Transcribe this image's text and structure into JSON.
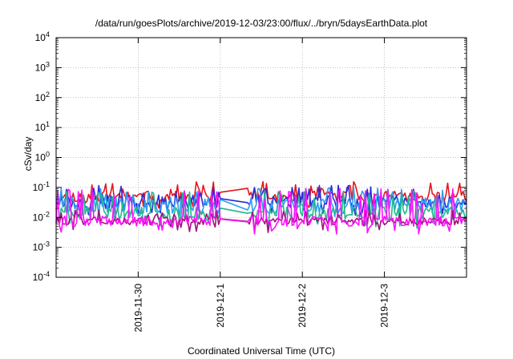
{
  "chart_data": {
    "type": "line",
    "title": "/data/run/goesPlots/archive/2019-12-03/23:00/flux/../bryn/5daysEarthData.plot",
    "xlabel": "Coordinated Universal Time (UTC)",
    "ylabel": "cSv/day",
    "y_scale": "log",
    "ylim": [
      0.0001,
      10000
    ],
    "y_ticks": [
      {
        "value": 0.0001,
        "base": "10",
        "exp": "-4"
      },
      {
        "value": 0.001,
        "base": "10",
        "exp": "-3"
      },
      {
        "value": 0.01,
        "base": "10",
        "exp": "-2"
      },
      {
        "value": 0.1,
        "base": "10",
        "exp": "-1"
      },
      {
        "value": 1,
        "base": "10",
        "exp": "0"
      },
      {
        "value": 10,
        "base": "10",
        "exp": "1"
      },
      {
        "value": 100,
        "base": "10",
        "exp": "2"
      },
      {
        "value": 1000,
        "base": "10",
        "exp": "3"
      },
      {
        "value": 10000,
        "base": "10",
        "exp": "4"
      }
    ],
    "x_type": "date",
    "xlim": [
      "2019-11-29T00:00",
      "2019-12-04T00:00"
    ],
    "x_ticks": [
      "2019-11-30",
      "2019-12-1",
      "2019-12-2",
      "2019-12-3"
    ],
    "x_tick_dates": [
      "2019-11-30T00:00",
      "2019-12-01T00:00",
      "2019-12-02T00:00",
      "2019-12-03T00:00"
    ],
    "grid": true,
    "gap": [
      "2019-12-01T00:00",
      "2019-12-01T08:00"
    ],
    "series": [
      {
        "color": "#e8141e",
        "base": 0.05,
        "spread": 0.35,
        "spikes": 0.12,
        "seed": 11
      },
      {
        "color": "#2a2ad8",
        "base": 0.035,
        "spread": 0.45,
        "spikes": 0.09,
        "seed": 23
      },
      {
        "color": "#2aa0ee",
        "base": 0.025,
        "spread": 0.55,
        "spikes": 0.08,
        "seed": 37
      },
      {
        "color": "#20b88c",
        "base": 0.013,
        "spread": 0.45,
        "spikes": 0.06,
        "seed": 41
      },
      {
        "color": "#a0147a",
        "base": 0.0075,
        "spread": 0.25,
        "spikes": 0.015,
        "seed": 53
      },
      {
        "color": "#ff10ff",
        "base": 0.0075,
        "spread": 0.35,
        "spikes": 0.07,
        "seed": 67
      }
    ]
  }
}
